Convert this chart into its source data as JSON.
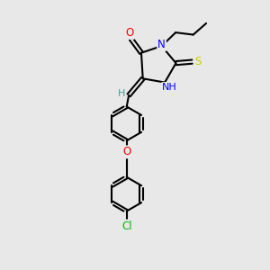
{
  "background_color": "#e8e8e8",
  "bond_color": "#000000",
  "atom_colors": {
    "O": "#ff0000",
    "N": "#0000ff",
    "S": "#cccc00",
    "Cl": "#00bb00",
    "C": "#000000",
    "H": "#4a9a9a"
  },
  "figsize": [
    3.0,
    3.0
  ],
  "dpi": 100
}
